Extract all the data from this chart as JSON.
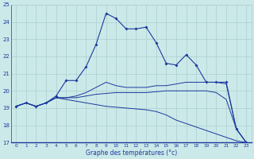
{
  "xlabel": "Graphe des températures (°c)",
  "bg_color": "#cce9e9",
  "grid_color": "#aacfcf",
  "line_color": "#1a3a9c",
  "hours": [
    0,
    1,
    2,
    3,
    4,
    5,
    6,
    7,
    8,
    9,
    10,
    11,
    12,
    13,
    14,
    15,
    16,
    17,
    18,
    19,
    20,
    21,
    22,
    23
  ],
  "curve1": [
    19.1,
    19.3,
    19.1,
    19.3,
    19.6,
    19.5,
    19.4,
    19.3,
    19.2,
    19.1,
    19.05,
    19.0,
    18.95,
    18.9,
    18.8,
    18.6,
    18.3,
    18.1,
    17.9,
    17.7,
    17.5,
    17.3,
    17.1,
    17.0
  ],
  "curve2": [
    19.1,
    19.3,
    19.1,
    19.3,
    19.6,
    19.6,
    19.6,
    19.7,
    19.8,
    19.85,
    19.9,
    19.9,
    19.9,
    19.9,
    19.95,
    20.0,
    20.0,
    20.0,
    20.0,
    20.0,
    19.9,
    19.5,
    17.8,
    17.0
  ],
  "curve3": [
    19.1,
    19.3,
    19.1,
    19.3,
    19.6,
    19.6,
    19.7,
    19.9,
    20.2,
    20.5,
    20.3,
    20.2,
    20.2,
    20.2,
    20.3,
    20.3,
    20.4,
    20.5,
    20.5,
    20.5,
    20.5,
    20.4,
    17.8,
    17.0
  ],
  "curve4": [
    19.1,
    19.3,
    19.1,
    19.3,
    19.7,
    20.6,
    20.6,
    21.4,
    22.7,
    24.5,
    24.2,
    23.6,
    23.6,
    23.7,
    22.8,
    21.6,
    21.5,
    22.1,
    21.5,
    20.5,
    20.5,
    20.5,
    17.8,
    17.0
  ],
  "ylim": [
    17,
    25
  ],
  "yticks": [
    17,
    18,
    19,
    20,
    21,
    22,
    23,
    24,
    25
  ],
  "xticks": [
    0,
    1,
    2,
    3,
    4,
    5,
    6,
    7,
    8,
    9,
    10,
    11,
    12,
    13,
    14,
    15,
    16,
    17,
    18,
    19,
    20,
    21,
    22,
    23
  ]
}
